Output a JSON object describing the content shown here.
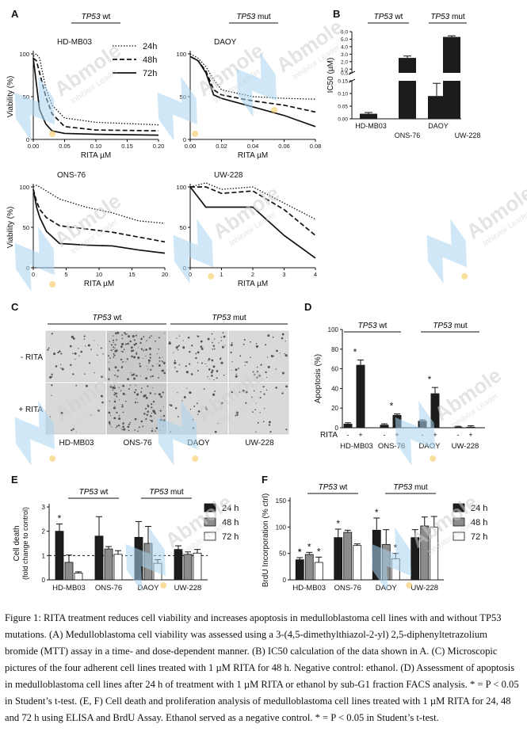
{
  "colors": {
    "bar_black": "#1c1c1c",
    "bar_gray": "#8c8c8c",
    "bar_white": "#ffffff",
    "axis": "#111111"
  },
  "watermark": {
    "brand": "Abmole",
    "tagline": "Inhibitor Leader"
  },
  "chart_data": [
    {
      "panel": "A",
      "type": "line",
      "title": "HD-MB03",
      "group": "TP53 wt",
      "xlabel": "RITA µM",
      "ylabel": "Viability (%)",
      "xlim": [
        0,
        0.2
      ],
      "ylim": [
        0,
        100
      ],
      "xticks": [
        0.0,
        0.05,
        0.1,
        0.15,
        0.2
      ],
      "xtick_labels": [
        "0.00",
        "0.05",
        "0.10",
        "0.15",
        "0.20"
      ],
      "yticks": [
        0,
        50,
        100
      ],
      "ytick_labels": [
        "0",
        "50",
        "100"
      ],
      "legend": [
        "24h",
        "48h",
        "72h"
      ],
      "legend_position": "top-right",
      "series": [
        {
          "name": "24h",
          "style": "dotted",
          "x": [
            0,
            0.005,
            0.01,
            0.02,
            0.03,
            0.05,
            0.1,
            0.2
          ],
          "y": [
            97,
            100,
            95,
            60,
            40,
            25,
            20,
            17
          ]
        },
        {
          "name": "48h",
          "style": "dashed",
          "x": [
            0,
            0.005,
            0.01,
            0.02,
            0.03,
            0.05,
            0.1,
            0.2
          ],
          "y": [
            95,
            92,
            78,
            50,
            30,
            15,
            11,
            10
          ]
        },
        {
          "name": "72h",
          "style": "solid",
          "x": [
            0,
            0.005,
            0.01,
            0.02,
            0.03,
            0.05,
            0.1,
            0.2
          ],
          "y": [
            95,
            65,
            35,
            18,
            10,
            7,
            6,
            5
          ]
        }
      ]
    },
    {
      "panel": "A",
      "type": "line",
      "title": "DAOY",
      "group": "TP53 mut",
      "xlabel": "RITA µM",
      "ylabel": "",
      "xlim": [
        0,
        0.08
      ],
      "ylim": [
        0,
        100
      ],
      "xticks": [
        0.0,
        0.02,
        0.04,
        0.06,
        0.08
      ],
      "xtick_labels": [
        "0.00",
        "0.02",
        "0.04",
        "0.06",
        "0.08"
      ],
      "yticks": [
        0,
        50,
        100
      ],
      "ytick_labels": [
        "0",
        "50",
        "100"
      ],
      "series": [
        {
          "name": "24h",
          "style": "dotted",
          "x": [
            0,
            0.005,
            0.01,
            0.015,
            0.02,
            0.04,
            0.06,
            0.08
          ],
          "y": [
            100,
            95,
            85,
            70,
            58,
            50,
            48,
            47
          ]
        },
        {
          "name": "48h",
          "style": "dashed",
          "x": [
            0,
            0.005,
            0.01,
            0.015,
            0.02,
            0.04,
            0.06,
            0.08
          ],
          "y": [
            97,
            92,
            80,
            58,
            52,
            45,
            40,
            32
          ]
        },
        {
          "name": "72h",
          "style": "solid",
          "x": [
            0,
            0.005,
            0.01,
            0.015,
            0.02,
            0.04,
            0.06,
            0.08
          ],
          "y": [
            97,
            92,
            78,
            52,
            48,
            38,
            28,
            15
          ]
        }
      ]
    },
    {
      "panel": "A",
      "type": "line",
      "title": "ONS-76",
      "xlabel": "RITA µM",
      "ylabel": "Viability (%)",
      "xlim": [
        0,
        20
      ],
      "ylim": [
        0,
        100
      ],
      "xticks": [
        0,
        5,
        10,
        15,
        20
      ],
      "xtick_labels": [
        "0",
        "5",
        "10",
        "15",
        "20"
      ],
      "yticks": [
        0,
        50,
        100
      ],
      "ytick_labels": [
        "0",
        "50",
        "100"
      ],
      "series": [
        {
          "name": "24h",
          "style": "dotted",
          "x": [
            0,
            0.5,
            1,
            2,
            4,
            8,
            12,
            16,
            20
          ],
          "y": [
            100,
            102,
            100,
            95,
            85,
            75,
            68,
            58,
            55
          ]
        },
        {
          "name": "48h",
          "style": "dashed",
          "x": [
            0,
            0.5,
            1,
            2,
            4,
            8,
            12,
            16,
            20
          ],
          "y": [
            97,
            82,
            72,
            62,
            52,
            48,
            44,
            38,
            32
          ]
        },
        {
          "name": "72h",
          "style": "solid",
          "x": [
            0,
            0.5,
            1,
            2,
            4,
            8,
            12,
            16,
            20
          ],
          "y": [
            97,
            75,
            62,
            45,
            30,
            28,
            27,
            22,
            18
          ]
        }
      ]
    },
    {
      "panel": "A",
      "type": "line",
      "title": "UW-228",
      "xlabel": "RITA µM",
      "ylabel": "",
      "xlim": [
        0,
        4
      ],
      "ylim": [
        0,
        100
      ],
      "xticks": [
        0,
        1,
        2,
        3,
        4
      ],
      "xtick_labels": [
        "0",
        "1",
        "2",
        "3",
        "4"
      ],
      "yticks": [
        0,
        50,
        100
      ],
      "ytick_labels": [
        "0",
        "50",
        "100"
      ],
      "series": [
        {
          "name": "24h",
          "style": "dotted",
          "x": [
            0,
            0.5,
            1,
            2,
            3,
            4
          ],
          "y": [
            100,
            105,
            97,
            100,
            80,
            60
          ]
        },
        {
          "name": "48h",
          "style": "dashed",
          "x": [
            0,
            0.5,
            1,
            2,
            3,
            4
          ],
          "y": [
            100,
            100,
            92,
            95,
            72,
            40
          ]
        },
        {
          "name": "72h",
          "style": "solid",
          "x": [
            0,
            0.5,
            1,
            2,
            3,
            4
          ],
          "y": [
            100,
            75,
            75,
            75,
            40,
            12
          ]
        }
      ]
    },
    {
      "panel": "B",
      "type": "bar",
      "title": "IC50",
      "groups": [
        "TP53 wt",
        "TP53 mut"
      ],
      "ylabel": "IC50 (µM)",
      "categories": [
        "HD-MB03",
        "ONS-76",
        "DAOY",
        "UW-228"
      ],
      "values": [
        0.02,
        2.5,
        0.09,
        5.3
      ],
      "errors": [
        0.005,
        0.25,
        0.05,
        0.15
      ],
      "axis_break": {
        "lower": [
          0,
          0.15
        ],
        "upper": [
          0.5,
          6.0
        ]
      },
      "yticks_lower": [
        0.0,
        0.05,
        0.1,
        0.15
      ],
      "ytick_labels_lower": [
        "0.00",
        "0.05",
        "0.10",
        "0.15"
      ],
      "yticks_upper": [
        0.5,
        1,
        2,
        3,
        4,
        5,
        6
      ],
      "ytick_labels_upper": [
        "0.5",
        "1.0",
        "2.0",
        "3.0",
        "4.0",
        "5.0",
        "6.0"
      ]
    },
    {
      "panel": "C",
      "type": "table",
      "title": "Microscopic pictures",
      "groups": [
        "TP53 wt",
        "TP53 mut"
      ],
      "columns": [
        "HD-MB03",
        "ONS-76",
        "DAOY",
        "UW-228"
      ],
      "rows": [
        "- RITA",
        "+ RITA"
      ]
    },
    {
      "panel": "D",
      "type": "bar",
      "ylabel": "Apoptosis (%)",
      "groups": [
        "TP53 wt",
        "TP53 mut"
      ],
      "categories": [
        "HD-MB03",
        "ONS-76",
        "DAOY",
        "UW-228"
      ],
      "rita_label": "RITA",
      "minus": "-",
      "plus": "+",
      "series": [
        {
          "name": "- RITA",
          "values": [
            4,
            3,
            7,
            1
          ],
          "errors": [
            1,
            1,
            1,
            0.5
          ]
        },
        {
          "name": "+ RITA",
          "values": [
            64,
            13,
            35,
            1
          ],
          "errors": [
            5,
            1,
            6,
            1
          ]
        }
      ],
      "ylim": [
        0,
        100
      ],
      "yticks": [
        0,
        20,
        40,
        60,
        80,
        100
      ],
      "ytick_labels": [
        "0",
        "20",
        "40",
        "60",
        "80",
        "100"
      ],
      "significance": [
        "*",
        "*",
        "*",
        ""
      ]
    },
    {
      "panel": "E",
      "type": "bar",
      "ylabel": "Cell death (fold change to control)",
      "groups": [
        "TP53 wt",
        "TP53 mut"
      ],
      "categories": [
        "HD-MB03",
        "ONS-76",
        "DAOY",
        "UW-228"
      ],
      "legend": [
        "24 h",
        "48 h",
        "72 h"
      ],
      "series": [
        {
          "name": "24 h",
          "values": [
            2.0,
            1.8,
            1.75,
            1.25
          ],
          "errors": [
            0.3,
            0.8,
            0.65,
            0.15
          ]
        },
        {
          "name": "48 h",
          "values": [
            0.72,
            1.27,
            1.5,
            1.05
          ],
          "errors": [
            0.3,
            0.1,
            0.7,
            0.1
          ]
        },
        {
          "name": "72 h",
          "values": [
            0.28,
            1.05,
            0.68,
            1.1
          ],
          "errors": [
            0.05,
            0.15,
            0.15,
            0.15
          ]
        }
      ],
      "ylim": [
        0,
        3
      ],
      "yticks": [
        0,
        1,
        2,
        3
      ],
      "ytick_labels": [
        "0",
        "1",
        "2",
        "3"
      ],
      "reference_line": 1.0,
      "significance_index": [
        [
          0,
          0,
          "*"
        ]
      ]
    },
    {
      "panel": "F",
      "type": "bar",
      "ylabel": "BrdU Incorporation (% ctrl)",
      "groups": [
        "TP53 wt",
        "TP53 mut"
      ],
      "categories": [
        "HD-MB03",
        "ONS-76",
        "DAOY",
        "UW-228"
      ],
      "legend": [
        "24 h",
        "48 h",
        "72 h"
      ],
      "series": [
        {
          "name": "24 h",
          "values": [
            38,
            80,
            94,
            80
          ],
          "errors": [
            4,
            16,
            23,
            15
          ]
        },
        {
          "name": "48 h",
          "values": [
            48,
            90,
            67,
            102
          ],
          "errors": [
            4,
            4,
            28,
            17
          ]
        },
        {
          "name": "72 h",
          "values": [
            33,
            65,
            40,
            100
          ],
          "errors": [
            10,
            3,
            10,
            20
          ]
        }
      ],
      "ylim": [
        0,
        150
      ],
      "yticks": [
        0,
        50,
        100,
        150
      ],
      "ytick_labels": [
        "0",
        "50",
        "100",
        "150"
      ],
      "significance": [
        "*",
        "*",
        "*",
        "",
        "",
        "",
        "",
        "",
        "*"
      ]
    }
  ],
  "panel_labels": [
    "A",
    "B",
    "C",
    "D",
    "E",
    "F"
  ],
  "caption": "Figure 1: RITA treatment reduces cell viability and increases apoptosis in medulloblastoma cell lines with and without TP53 mutations. (A) Medulloblastoma cell viability was assessed using a 3-(4,5-dimethylthiazol-2-yl) 2,5-diphenyltetrazolium bromide (MTT) assay in a time- and dose-dependent manner. (B) IC50 calculation of the data shown in A. (C) Microscopic pictures of the four adherent cell lines treated with 1 µM RITA for 48 h. Negative control: ethanol. (D) Assessment of apoptosis in medulloblastoma cell lines after 24 h of treatment with 1 µM RITA or ethanol by sub-G1 fraction FACS analysis. * = P < 0.05 in Student’s t-test. (E, F) Cell death and proliferation analysis of medulloblastoma cell lines treated with 1 µM RITA for 24, 48 and 72 h using ELISA and BrdU Assay. Ethanol served as a negative control. * = P < 0.05 in Student’s t-test."
}
